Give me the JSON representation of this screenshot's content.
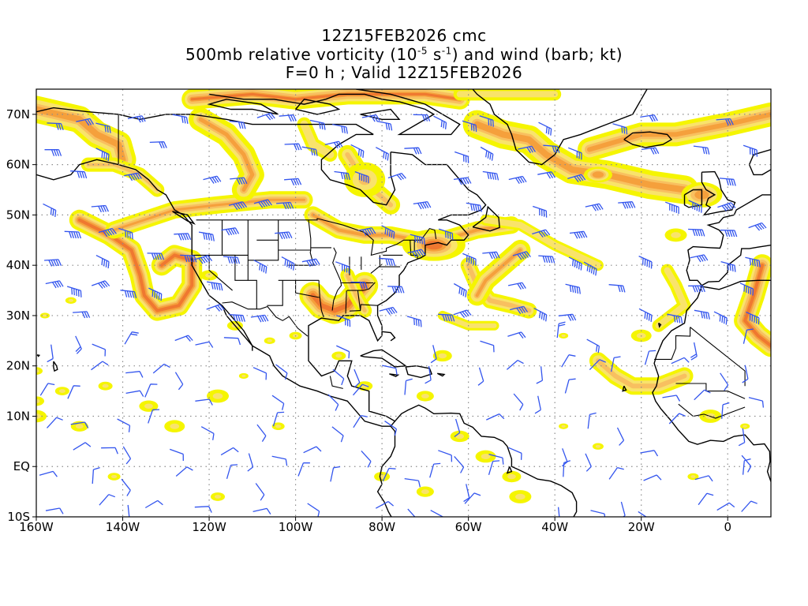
{
  "title": {
    "line1": "12Z15FEB2026 cmc",
    "line2_pre": "500mb relative vorticity (10",
    "line2_exp1": "-5",
    "line2_mid": " s",
    "line2_exp2": "-1",
    "line2_post": ") and wind (barb; kt)",
    "line3": "F=0 h ; Valid 12Z15FEB2026"
  },
  "axes": {
    "lat_labels": [
      "70N",
      "60N",
      "50N",
      "40N",
      "30N",
      "20N",
      "10N",
      "EQ",
      "10S"
    ],
    "lon_labels": [
      "160W",
      "140W",
      "120W",
      "100W",
      "80W",
      "60W",
      "40W",
      "20W",
      "0"
    ]
  },
  "colors": {
    "frame": "#000000",
    "grid": "#8c8c8c",
    "coast": "#000000",
    "barb": "#3355ee",
    "vort_levels": [
      "#f5f500",
      "#f9e36b",
      "#f8c060",
      "#f5a03c",
      "#ef7830",
      "#e84a3c",
      "#e2286a"
    ]
  },
  "map": {
    "projection": "cylindrical",
    "lon_range": [
      -160,
      10
    ],
    "lat_range": [
      -10,
      75
    ]
  }
}
